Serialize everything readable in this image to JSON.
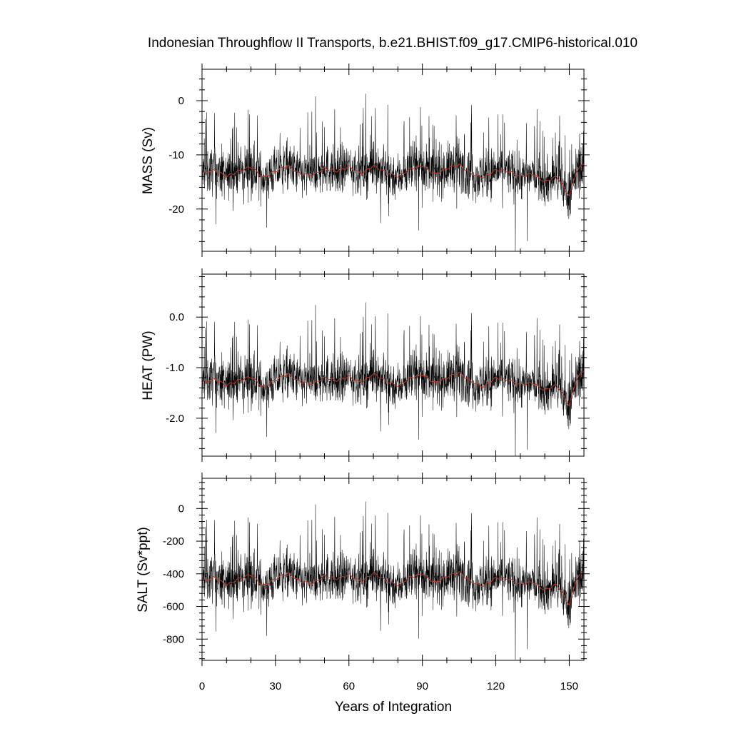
{
  "chart_data": {
    "title": "Indonesian Throughflow II Transports, b.e21.BHIST.f09_g17.CMIP6-historical.010",
    "xlabel": "Years of Integration",
    "type": "line",
    "xlim": [
      0,
      156
    ],
    "x_ticks": [
      0,
      30,
      60,
      90,
      120,
      150
    ],
    "x_tick_labels": [
      "0",
      "30",
      "60",
      "90",
      "120",
      "150"
    ],
    "series_colors": {
      "raw": "#000000",
      "smoothed": "#c0392b"
    },
    "panels": [
      {
        "ylabel": "MASS (Sv)",
        "ylim": [
          -27.8,
          5.8
        ],
        "y_ticks": [
          0,
          -10,
          -20
        ],
        "y_tick_labels": [
          "0",
          "-10",
          "-20"
        ],
        "raw_range": [
          -27.8,
          5.8
        ],
        "smoothed_mean": -13.3,
        "smoothed_points": [
          [
            0,
            -13.5
          ],
          [
            5,
            -12.8
          ],
          [
            10,
            -14.0
          ],
          [
            15,
            -13.0
          ],
          [
            20,
            -12.2
          ],
          [
            25,
            -14.2
          ],
          [
            30,
            -13.0
          ],
          [
            35,
            -12.0
          ],
          [
            40,
            -13.5
          ],
          [
            45,
            -13.8
          ],
          [
            50,
            -12.5
          ],
          [
            55,
            -13.0
          ],
          [
            60,
            -12.2
          ],
          [
            65,
            -13.5
          ],
          [
            70,
            -12.0
          ],
          [
            75,
            -13.2
          ],
          [
            80,
            -14.0
          ],
          [
            85,
            -12.6
          ],
          [
            90,
            -12.0
          ],
          [
            95,
            -13.6
          ],
          [
            100,
            -12.5
          ],
          [
            105,
            -11.8
          ],
          [
            110,
            -13.5
          ],
          [
            115,
            -14.2
          ],
          [
            120,
            -12.8
          ],
          [
            125,
            -13.0
          ],
          [
            130,
            -14.0
          ],
          [
            135,
            -13.5
          ],
          [
            140,
            -15.0
          ],
          [
            145,
            -14.0
          ],
          [
            150,
            -17.5
          ],
          [
            153,
            -13.0
          ],
          [
            156,
            -11.5
          ]
        ]
      },
      {
        "ylabel": "HEAT (PW)",
        "ylim": [
          -2.75,
          0.85
        ],
        "y_ticks": [
          0.0,
          -1.0,
          -2.0
        ],
        "y_tick_labels": [
          "0.0",
          "-1.0",
          "-2.0"
        ],
        "raw_range": [
          -2.75,
          0.85
        ],
        "smoothed_mean": -1.28,
        "smoothed_points": [
          [
            0,
            -1.3
          ],
          [
            5,
            -1.22
          ],
          [
            10,
            -1.35
          ],
          [
            15,
            -1.25
          ],
          [
            20,
            -1.18
          ],
          [
            25,
            -1.38
          ],
          [
            30,
            -1.25
          ],
          [
            35,
            -1.12
          ],
          [
            40,
            -1.28
          ],
          [
            45,
            -1.32
          ],
          [
            50,
            -1.2
          ],
          [
            55,
            -1.25
          ],
          [
            60,
            -1.18
          ],
          [
            65,
            -1.3
          ],
          [
            70,
            -1.12
          ],
          [
            75,
            -1.26
          ],
          [
            80,
            -1.36
          ],
          [
            85,
            -1.2
          ],
          [
            90,
            -1.14
          ],
          [
            95,
            -1.3
          ],
          [
            100,
            -1.2
          ],
          [
            105,
            -1.1
          ],
          [
            110,
            -1.28
          ],
          [
            115,
            -1.38
          ],
          [
            120,
            -1.2
          ],
          [
            125,
            -1.24
          ],
          [
            130,
            -1.34
          ],
          [
            135,
            -1.3
          ],
          [
            140,
            -1.45
          ],
          [
            145,
            -1.34
          ],
          [
            150,
            -1.75
          ],
          [
            153,
            -1.22
          ],
          [
            156,
            -1.05
          ]
        ]
      },
      {
        "ylabel": "SALT (Sv*ppt)",
        "ylim": [
          -930,
          185
        ],
        "y_ticks": [
          0,
          -200,
          -400,
          -600,
          -800
        ],
        "y_tick_labels": [
          "0",
          "-200",
          "-400",
          "-600",
          "-800"
        ],
        "raw_range": [
          -930,
          185
        ],
        "smoothed_mean": -440,
        "smoothed_points": [
          [
            0,
            -450
          ],
          [
            5,
            -420
          ],
          [
            10,
            -470
          ],
          [
            15,
            -430
          ],
          [
            20,
            -405
          ],
          [
            25,
            -475
          ],
          [
            30,
            -430
          ],
          [
            35,
            -395
          ],
          [
            40,
            -445
          ],
          [
            45,
            -460
          ],
          [
            50,
            -415
          ],
          [
            55,
            -430
          ],
          [
            60,
            -405
          ],
          [
            65,
            -450
          ],
          [
            70,
            -395
          ],
          [
            75,
            -440
          ],
          [
            80,
            -470
          ],
          [
            85,
            -420
          ],
          [
            90,
            -400
          ],
          [
            95,
            -455
          ],
          [
            100,
            -415
          ],
          [
            105,
            -390
          ],
          [
            110,
            -450
          ],
          [
            115,
            -475
          ],
          [
            120,
            -425
          ],
          [
            125,
            -430
          ],
          [
            130,
            -465
          ],
          [
            135,
            -450
          ],
          [
            140,
            -500
          ],
          [
            145,
            -465
          ],
          [
            150,
            -590
          ],
          [
            153,
            -430
          ],
          [
            156,
            -380
          ]
        ]
      }
    ]
  }
}
